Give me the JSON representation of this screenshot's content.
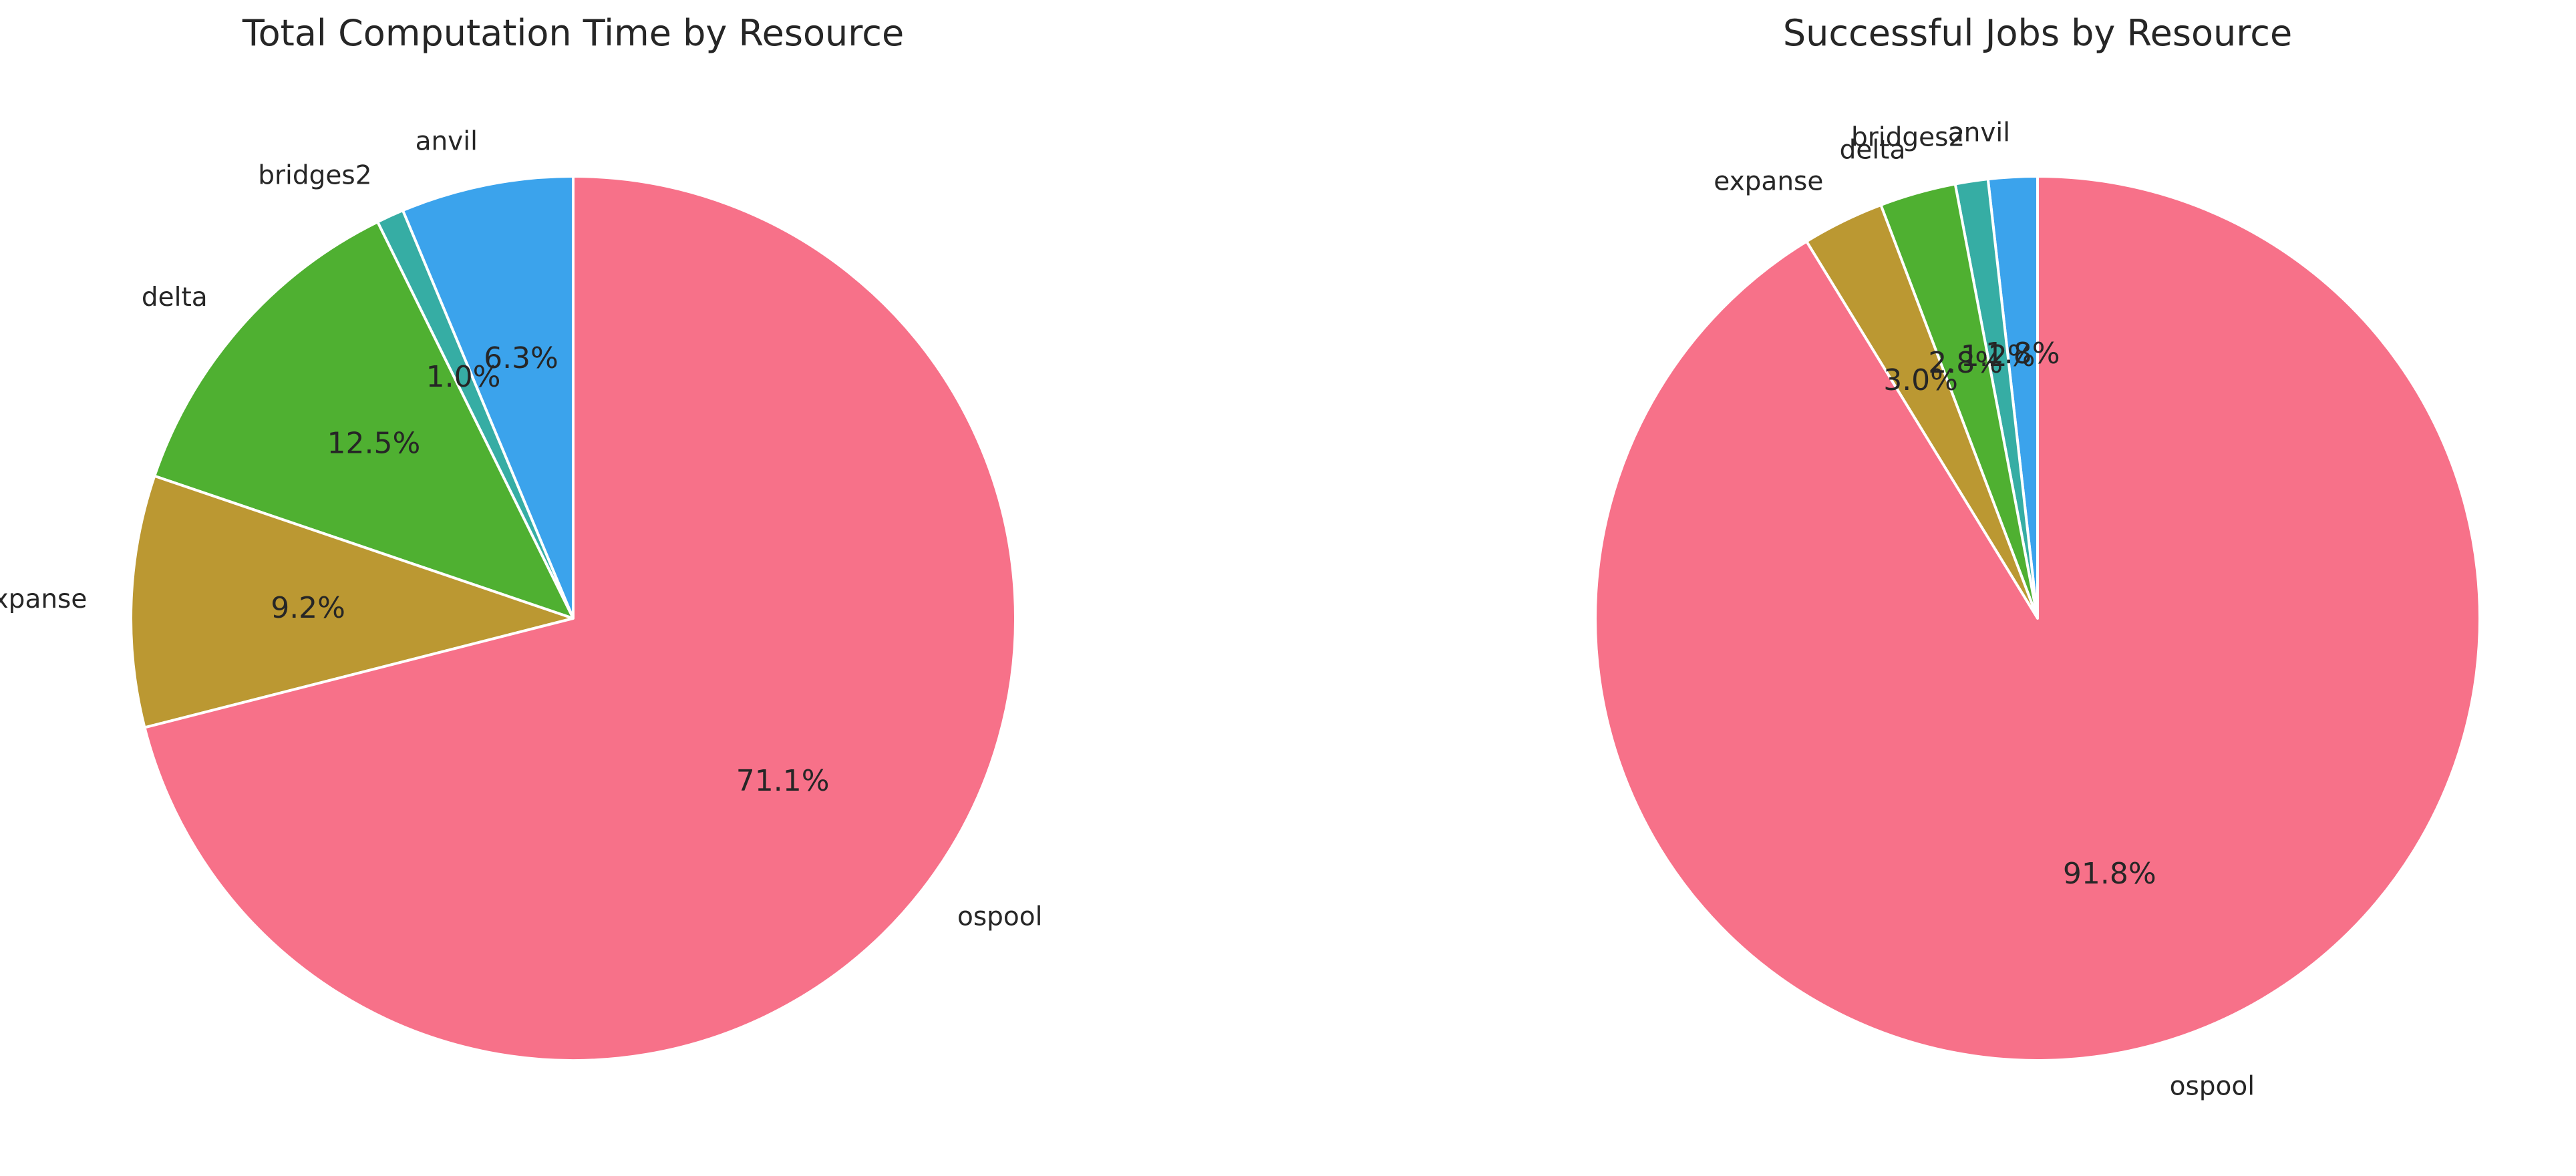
{
  "chart_data": [
    {
      "type": "pie",
      "title": "Total Computation Time by Resource",
      "start_angle_deg": 90,
      "direction": "counterclockwise",
      "slices": [
        {
          "label": "anvil",
          "value": 6.3,
          "pct_label": "6.3%",
          "color": "#3ba3ec"
        },
        {
          "label": "bridges2",
          "value": 1.0,
          "pct_label": "1.0%",
          "color": "#36ada4"
        },
        {
          "label": "delta",
          "value": 12.5,
          "pct_label": "12.5%",
          "color": "#4fb031"
        },
        {
          "label": "expanse",
          "value": 9.2,
          "pct_label": "9.2%",
          "color": "#bb9832"
        },
        {
          "label": "ospool",
          "value": 71.1,
          "pct_label": "71.1%",
          "color": "#f77189"
        }
      ]
    },
    {
      "type": "pie",
      "title": "Successful Jobs by Resource",
      "start_angle_deg": 90,
      "direction": "counterclockwise",
      "slices": [
        {
          "label": "anvil",
          "value": 1.8,
          "pct_label": "1.8%",
          "color": "#3ba3ec"
        },
        {
          "label": "bridges2",
          "value": 1.2,
          "pct_label": "1.2%",
          "color": "#36ada4"
        },
        {
          "label": "delta",
          "value": 2.8,
          "pct_label": "2.8%",
          "color": "#4fb031"
        },
        {
          "label": "expanse",
          "value": 3.0,
          "pct_label": "3.0%",
          "color": "#bb9832"
        },
        {
          "label": "ospool",
          "value": 91.8,
          "pct_label": "91.8%",
          "color": "#f77189"
        }
      ]
    }
  ]
}
